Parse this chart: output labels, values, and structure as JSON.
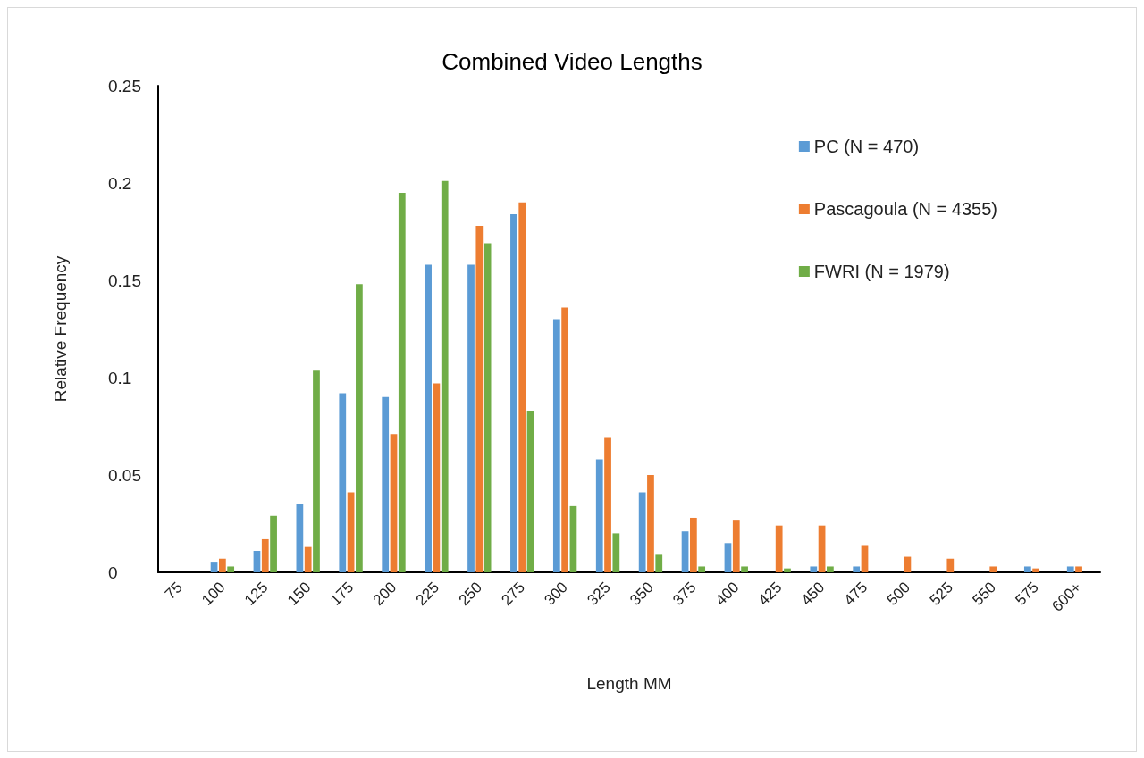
{
  "chart_data": {
    "type": "bar",
    "title": "Combined Video Lengths",
    "xlabel": "Length MM",
    "ylabel": "Relative Frequency",
    "categories": [
      "75",
      "100",
      "125",
      "150",
      "175",
      "200",
      "225",
      "250",
      "275",
      "300",
      "325",
      "350",
      "375",
      "400",
      "425",
      "450",
      "475",
      "500",
      "525",
      "550",
      "575",
      "600+"
    ],
    "series": [
      {
        "name": "PC (N = 470)",
        "color": "#5b9bd5",
        "values": [
          0,
          0.005,
          0.011,
          0.035,
          0.092,
          0.09,
          0.158,
          0.158,
          0.184,
          0.13,
          0.058,
          0.041,
          0.021,
          0.015,
          0,
          0.003,
          0.003,
          0,
          0,
          0,
          0.003,
          0.003
        ]
      },
      {
        "name": "Pascagoula (N = 4355)",
        "color": "#ed7d31",
        "values": [
          0,
          0.007,
          0.017,
          0.013,
          0.041,
          0.071,
          0.097,
          0.178,
          0.19,
          0.136,
          0.069,
          0.05,
          0.028,
          0.027,
          0.024,
          0.024,
          0.014,
          0.008,
          0.007,
          0.003,
          0.002,
          0.003
        ]
      },
      {
        "name": "FWRI (N = 1979)",
        "color": "#70ad47",
        "values": [
          0,
          0.003,
          0.029,
          0.104,
          0.148,
          0.195,
          0.201,
          0.169,
          0.083,
          0.034,
          0.02,
          0.009,
          0.003,
          0.003,
          0.002,
          0.003,
          0,
          0,
          0,
          0,
          0,
          0
        ]
      }
    ],
    "ylim": [
      0,
      0.25
    ],
    "yticks": [
      0,
      0.05,
      0.1,
      0.15,
      0.2,
      0.25
    ],
    "grid": false,
    "legend": "top right"
  }
}
